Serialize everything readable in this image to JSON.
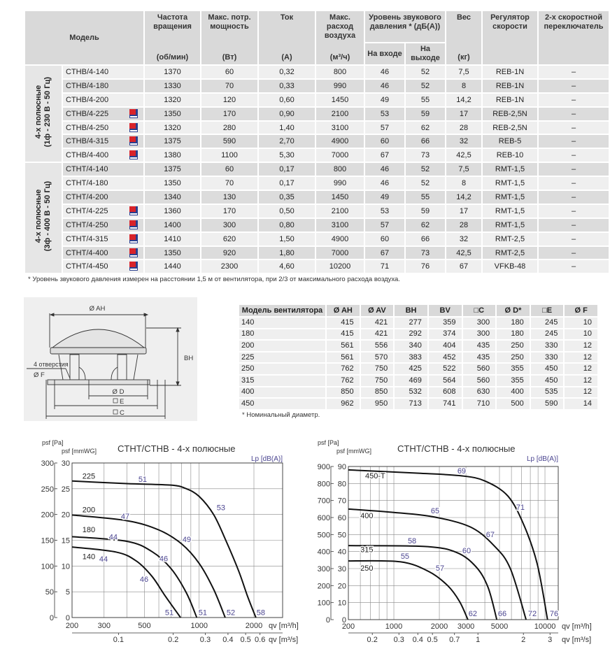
{
  "main_table": {
    "headers": {
      "model": "Модель",
      "rpm": "Частота вращения",
      "rpm_unit": "(об/мин)",
      "power": "Макс. потр. мощность",
      "power_unit": "(Вт)",
      "current": "Ток",
      "current_unit": "(А)",
      "airflow": "Макс. расход воздуха",
      "airflow_unit": "(м³/ч)",
      "sound": "Уровень звукового давления * (дБ(А))",
      "sound_in": "На входе",
      "sound_out": "На выходе",
      "weight": "Вес",
      "weight_unit": "(кг)",
      "regulator": "Регулятор скорости",
      "switch": "2-х скоростной переключатель"
    },
    "groups": [
      {
        "line1": "4-х полюсные",
        "line2": "(1ф - 230 В - 50 Гц)",
        "rows": [
          [
            "CTHB/4-140",
            false,
            "1370",
            "60",
            "0,32",
            "800",
            "46",
            "52",
            "7,5",
            "REB-1N",
            "–"
          ],
          [
            "CTHB/4-180",
            false,
            "1330",
            "70",
            "0,33",
            "990",
            "46",
            "52",
            "8",
            "REB-1N",
            "–"
          ],
          [
            "CTHB/4-200",
            false,
            "1320",
            "120",
            "0,60",
            "1450",
            "49",
            "55",
            "14,2",
            "REB-1N",
            "–"
          ],
          [
            "CTHB/4-225",
            true,
            "1350",
            "170",
            "0,90",
            "2100",
            "53",
            "59",
            "17",
            "REB-2,5N",
            "–"
          ],
          [
            "CTHB/4-250",
            true,
            "1320",
            "280",
            "1,40",
            "3100",
            "57",
            "62",
            "28",
            "REB-2,5N",
            "–"
          ],
          [
            "CTHB/4-315",
            true,
            "1375",
            "590",
            "2,70",
            "4900",
            "60",
            "66",
            "32",
            "REB-5",
            "–"
          ],
          [
            "CTHB/4-400",
            true,
            "1380",
            "1100",
            "5,30",
            "7000",
            "67",
            "73",
            "42,5",
            "REB-10",
            "–"
          ]
        ]
      },
      {
        "line1": "4-х полюсные",
        "line2": "(3ф - 400 В - 50 Гц)",
        "rows": [
          [
            "CTHT/4-140",
            false,
            "1375",
            "60",
            "0,17",
            "800",
            "46",
            "52",
            "7,5",
            "RMT-1,5",
            "–"
          ],
          [
            "CTHT/4-180",
            false,
            "1350",
            "70",
            "0,17",
            "990",
            "46",
            "52",
            "8",
            "RMT-1,5",
            "–"
          ],
          [
            "CTHT/4-200",
            false,
            "1340",
            "130",
            "0,35",
            "1450",
            "49",
            "55",
            "14,2",
            "RMT-1,5",
            "–"
          ],
          [
            "CTHT/4-225",
            true,
            "1360",
            "170",
            "0,50",
            "2100",
            "53",
            "59",
            "17",
            "RMT-1,5",
            "–"
          ],
          [
            "CTHT/4-250",
            true,
            "1400",
            "300",
            "0,80",
            "3100",
            "57",
            "62",
            "28",
            "RMT-1,5",
            "–"
          ],
          [
            "CTHT/4-315",
            true,
            "1410",
            "620",
            "1,50",
            "4900",
            "60",
            "66",
            "32",
            "RMT-2,5",
            "–"
          ],
          [
            "CTHT/4-400",
            true,
            "1350",
            "920",
            "1,80",
            "7000",
            "67",
            "73",
            "42,5",
            "RMT-2,5",
            "–"
          ],
          [
            "CTHT/4-450",
            true,
            "1440",
            "2300",
            "4,60",
            "10200",
            "71",
            "76",
            "67",
            "VFKB-48",
            "–"
          ]
        ]
      }
    ],
    "footnote": "* Уровень звукового давления измерен на расстоянии 1,5 м от вентилятора, при 2/3 от максимального расхода воздуха.",
    "cert_icon": "certification-mark-icon"
  },
  "drawing": {
    "label_ah": "Ø AH",
    "label_bh": "BH",
    "label_holes": "4 отверстия",
    "label_f": "Ø F",
    "label_d": "Ø D",
    "label_e": "E",
    "label_c": "C"
  },
  "dim_table": {
    "headers": [
      "Модель вентилятора",
      "Ø AH",
      "Ø AV",
      "BH",
      "BV",
      "□C",
      "Ø D*",
      "□E",
      "Ø F"
    ],
    "rows": [
      [
        "140",
        "415",
        "421",
        "277",
        "359",
        "300",
        "180",
        "245",
        "10"
      ],
      [
        "180",
        "415",
        "421",
        "292",
        "374",
        "300",
        "180",
        "245",
        "10"
      ],
      [
        "200",
        "561",
        "556",
        "340",
        "404",
        "435",
        "250",
        "330",
        "12"
      ],
      [
        "225",
        "561",
        "570",
        "383",
        "452",
        "435",
        "250",
        "330",
        "12"
      ],
      [
        "250",
        "762",
        "750",
        "425",
        "522",
        "560",
        "355",
        "450",
        "12"
      ],
      [
        "315",
        "762",
        "750",
        "469",
        "564",
        "560",
        "355",
        "450",
        "12"
      ],
      [
        "400",
        "850",
        "850",
        "532",
        "608",
        "630",
        "400",
        "535",
        "12"
      ],
      [
        "450",
        "962",
        "950",
        "713",
        "741",
        "710",
        "500",
        "590",
        "14"
      ]
    ],
    "footnote": "* Номинальный диаметр."
  },
  "chart_data": [
    {
      "type": "line",
      "title": "CTHT/CTHB - 4-х полюсные",
      "ylabel_pa": "psf [Pa]",
      "ylabel_mmwg": "psf [mmWG]",
      "xlabel": "qv [m³/h]",
      "x2label": "qv [m³/s]",
      "sound_label": "Lp [dB(A)]",
      "x_scale": "log",
      "xlim": [
        200,
        2900
      ],
      "ylim_pa": [
        0,
        300
      ],
      "ylim_mmwg": [
        0,
        30
      ],
      "y_ticks_pa": [
        0,
        50,
        100,
        150,
        200,
        250,
        300
      ],
      "y_ticks_mmwg": [
        0,
        5,
        10,
        15,
        20,
        25,
        30
      ],
      "x_ticks": [
        200,
        300,
        500,
        1000,
        2000
      ],
      "x_start_label": "",
      "x2_ticks": [
        0.1,
        0.2,
        0.3,
        0.4,
        0.5,
        0.6
      ],
      "grid": true,
      "series": [
        {
          "name": "225",
          "label_at": [
            228,
            275
          ],
          "points": [
            [
              200,
              265
            ],
            [
              400,
              260
            ],
            [
              700,
              257
            ],
            [
              850,
              250
            ],
            [
              1000,
              235
            ],
            [
              1200,
              200
            ],
            [
              1400,
              150
            ],
            [
              1650,
              90
            ],
            [
              1850,
              40
            ],
            [
              2050,
              0
            ]
          ]
        },
        {
          "name": "200",
          "label_at": [
            228,
            210
          ],
          "points": [
            [
              200,
              199
            ],
            [
              400,
              188
            ],
            [
              600,
              170
            ],
            [
              800,
              143
            ],
            [
              1000,
              105
            ],
            [
              1200,
              55
            ],
            [
              1390,
              0
            ]
          ]
        },
        {
          "name": "180",
          "label_at": [
            228,
            171
          ],
          "points": [
            [
              200,
              157
            ],
            [
              400,
              148
            ],
            [
              550,
              128
            ],
            [
              700,
              95
            ],
            [
              850,
              48
            ],
            [
              970,
              0
            ]
          ]
        },
        {
          "name": "140",
          "label_at": [
            228,
            119
          ],
          "points": [
            [
              200,
              137
            ],
            [
              350,
              127
            ],
            [
              450,
              110
            ],
            [
              550,
              80
            ],
            [
              650,
              42
            ],
            [
              790,
              0
            ]
          ]
        }
      ],
      "sound_levels": [
        {
          "text": "51",
          "at": [
            489,
            269
          ]
        },
        {
          "text": "53",
          "at": [
            1318,
            214
          ]
        },
        {
          "text": "47",
          "at": [
            392,
            197
          ]
        },
        {
          "text": "49",
          "at": [
            855,
            152
          ]
        },
        {
          "text": "44",
          "at": [
            337,
            157
          ]
        },
        {
          "text": "46",
          "at": [
            638,
            115
          ]
        },
        {
          "text": "44",
          "at": [
            298,
            114
          ]
        },
        {
          "text": "46",
          "at": [
            498,
            75
          ]
        },
        {
          "text": "51",
          "at": [
            685,
            10
          ]
        },
        {
          "text": "51",
          "at": [
            1047,
            10
          ]
        },
        {
          "text": "52",
          "at": [
            1493,
            10
          ]
        },
        {
          "text": "58",
          "at": [
            2183,
            10
          ]
        }
      ]
    },
    {
      "type": "line",
      "title": "CTHT/CTHB - 4-х полюсные",
      "ylabel_pa": "psf [Pa]",
      "ylabel_mmwg": "psf [mmWG]",
      "xlabel": "qv [m³/h]",
      "x2label": "qv [m³/s]",
      "sound_label": "Lp [dB(A)]",
      "x_scale": "log",
      "xlim": [
        500,
        12200
      ],
      "ylim_pa": [
        0,
        900
      ],
      "ylim_mmwg": [
        0,
        90
      ],
      "y_ticks_pa": [
        0,
        100,
        200,
        300,
        400,
        500,
        600,
        700,
        800,
        900
      ],
      "y_ticks_mmwg": [
        0,
        10,
        20,
        30,
        40,
        50,
        60,
        70,
        80,
        90
      ],
      "x_ticks": [
        1000,
        2000,
        3000,
        5000,
        10000
      ],
      "x_start_label": "200",
      "x2_ticks": [
        0.2,
        0.3,
        0.4,
        0.5,
        0.7,
        1.0,
        2.0,
        3.0
      ],
      "grid": true,
      "series": [
        {
          "name": "450-T",
          "label_at": [
            646,
            847
          ],
          "points": [
            [
              500,
              880
            ],
            [
              1500,
              860
            ],
            [
              2800,
              845
            ],
            [
              4000,
              815
            ],
            [
              5700,
              725
            ],
            [
              7300,
              550
            ],
            [
              8900,
              325
            ],
            [
              10400,
              0
            ]
          ]
        },
        {
          "name": "400",
          "label_at": [
            600,
            612
          ],
          "points": [
            [
              500,
              650
            ],
            [
              1000,
              630
            ],
            [
              1800,
              605
            ],
            [
              3200,
              545
            ],
            [
              4600,
              435
            ],
            [
              5900,
              300
            ],
            [
              7500,
              0
            ]
          ]
        },
        {
          "name": "315",
          "label_at": [
            600,
            412
          ],
          "points": [
            [
              500,
              435
            ],
            [
              1600,
              430
            ],
            [
              2600,
              395
            ],
            [
              3500,
              310
            ],
            [
              4200,
              190
            ],
            [
              4800,
              0
            ]
          ]
        },
        {
          "name": "250",
          "label_at": [
            600,
            304
          ],
          "points": [
            [
              500,
              345
            ],
            [
              1100,
              340
            ],
            [
              1700,
              283
            ],
            [
              2270,
              200
            ],
            [
              2720,
              107
            ],
            [
              3090,
              0
            ]
          ]
        }
      ],
      "sound_levels": [
        {
          "text": "69",
          "at": [
            2810,
            875
          ]
        },
        {
          "text": "71",
          "at": [
            6880,
            662
          ]
        },
        {
          "text": "65",
          "at": [
            1875,
            641
          ]
        },
        {
          "text": "67",
          "at": [
            4350,
            501
          ]
        },
        {
          "text": "58",
          "at": [
            1320,
            464
          ]
        },
        {
          "text": "60",
          "at": [
            3030,
            407
          ]
        },
        {
          "text": "55",
          "at": [
            1185,
            374
          ]
        },
        {
          "text": "57",
          "at": [
            2020,
            304
          ]
        },
        {
          "text": "62",
          "at": [
            3330,
            37
          ]
        },
        {
          "text": "66",
          "at": [
            5220,
            37
          ]
        },
        {
          "text": "72",
          "at": [
            8250,
            37
          ]
        },
        {
          "text": "76",
          "at": [
            11480,
            37
          ]
        }
      ]
    }
  ],
  "colors": {
    "header_bg": "#d9d9d9",
    "row_light": "#efefef",
    "row_dark": "#dcdcdc",
    "sound_label": "#4b4590",
    "curve": "#111111"
  }
}
